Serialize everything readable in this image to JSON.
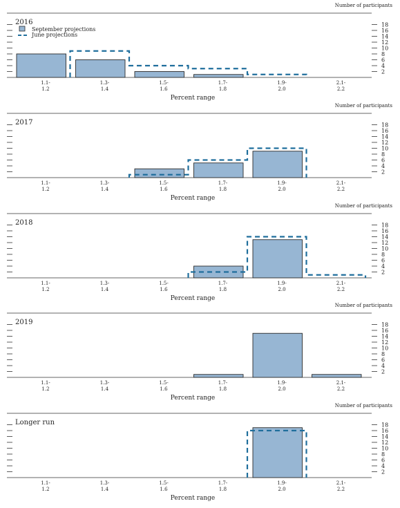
{
  "page": {
    "right_axis_label": "Number of participants",
    "x_axis_label": "Percent range"
  },
  "colors": {
    "bar_fill": "#97b6d3",
    "bar_stroke": "#2b2b2b",
    "june_line": "#1f6e9c",
    "axis": "#333333"
  },
  "legend": {
    "september": "September projections",
    "june": "June projections",
    "placement": "top-left (first panel only)"
  },
  "chart_data": [
    {
      "type": "bar",
      "title": "2016",
      "categories": [
        "1.1-\n1.2",
        "1.3-\n1.4",
        "1.5-\n1.6",
        "1.7-\n1.8",
        "1.9-\n2.0",
        "2.1-\n2.2"
      ],
      "series": [
        {
          "name": "September projections",
          "values": [
            8,
            6,
            2,
            1,
            0,
            0
          ]
        },
        {
          "name": "June projections",
          "values": [
            0,
            9,
            4,
            3,
            1,
            0
          ]
        }
      ],
      "y_ticks": [
        2,
        4,
        6,
        8,
        10,
        12,
        14,
        16,
        18
      ],
      "ylim": [
        0,
        19
      ],
      "xlabel": "Percent range",
      "ylabel": "Number of participants",
      "show_legend": true
    },
    {
      "type": "bar",
      "title": "2017",
      "categories": [
        "1.1-\n1.2",
        "1.3-\n1.4",
        "1.5-\n1.6",
        "1.7-\n1.8",
        "1.9-\n2.0",
        "2.1-\n2.2"
      ],
      "series": [
        {
          "name": "September projections",
          "values": [
            0,
            0,
            3,
            5,
            9,
            0
          ]
        },
        {
          "name": "June projections",
          "values": [
            0,
            0,
            1,
            6,
            10,
            0
          ]
        }
      ],
      "y_ticks": [
        2,
        4,
        6,
        8,
        10,
        12,
        14,
        16,
        18
      ],
      "ylim": [
        0,
        19
      ],
      "xlabel": "Percent range",
      "ylabel": "Number of participants",
      "show_legend": false
    },
    {
      "type": "bar",
      "title": "2018",
      "categories": [
        "1.1-\n1.2",
        "1.3-\n1.4",
        "1.5-\n1.6",
        "1.7-\n1.8",
        "1.9-\n2.0",
        "2.1-\n2.2"
      ],
      "series": [
        {
          "name": "September projections",
          "values": [
            0,
            0,
            0,
            4,
            13,
            0
          ]
        },
        {
          "name": "June projections",
          "values": [
            0,
            0,
            0,
            2,
            14,
            1
          ]
        }
      ],
      "y_ticks": [
        2,
        4,
        6,
        8,
        10,
        12,
        14,
        16,
        18
      ],
      "ylim": [
        0,
        19
      ],
      "xlabel": "Percent range",
      "ylabel": "Number of participants",
      "show_legend": false
    },
    {
      "type": "bar",
      "title": "2019",
      "categories": [
        "1.1-\n1.2",
        "1.3-\n1.4",
        "1.5-\n1.6",
        "1.7-\n1.8",
        "1.9-\n2.0",
        "2.1-\n2.2"
      ],
      "series": [
        {
          "name": "September projections",
          "values": [
            0,
            0,
            0,
            1,
            15,
            1
          ]
        }
      ],
      "y_ticks": [
        2,
        4,
        6,
        8,
        10,
        12,
        14,
        16,
        18
      ],
      "ylim": [
        0,
        19
      ],
      "xlabel": "Percent range",
      "ylabel": "Number of participants",
      "show_legend": false
    },
    {
      "type": "bar",
      "title": "Longer run",
      "categories": [
        "1.1-\n1.2",
        "1.3-\n1.4",
        "1.5-\n1.6",
        "1.7-\n1.8",
        "1.9-\n2.0",
        "2.1-\n2.2"
      ],
      "series": [
        {
          "name": "September projections",
          "values": [
            0,
            0,
            0,
            0,
            17,
            0
          ]
        },
        {
          "name": "June projections",
          "values": [
            0,
            0,
            0,
            0,
            16,
            0
          ]
        }
      ],
      "y_ticks": [
        2,
        4,
        6,
        8,
        10,
        12,
        14,
        16,
        18
      ],
      "ylim": [
        0,
        19
      ],
      "xlabel": "Percent range",
      "ylabel": "Number of participants",
      "show_legend": false
    }
  ]
}
